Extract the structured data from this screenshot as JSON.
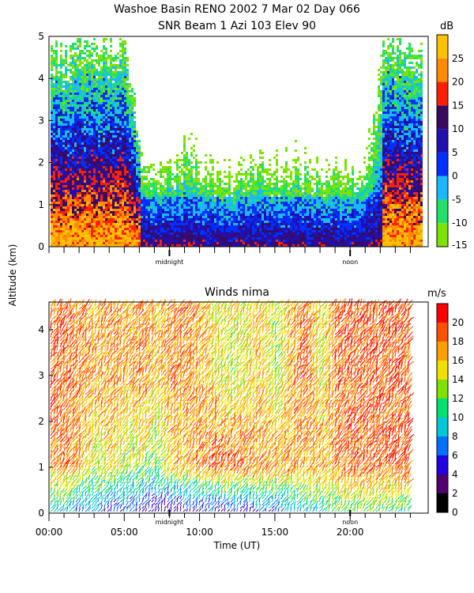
{
  "header": {
    "title_line1": "Washoe Basin RENO 2002   7 Mar 02 Day 066",
    "title_line2": "SNR Beam 1 Azi 103 Elev 90"
  },
  "shared_ylabel": "Altitude (km)",
  "chart_data": [
    {
      "type": "heatmap",
      "title": "SNR Beam 1 Azi 103 Elev 90",
      "ylabel": "Altitude (km)",
      "ylim": [
        0,
        5
      ],
      "yticks": [
        "0",
        "1",
        "2",
        "3",
        "4",
        "5"
      ],
      "markers": [
        {
          "label": "midnight",
          "x_hours": 8.0
        },
        {
          "label": "noon",
          "x_hours": 20.0
        }
      ],
      "colorbar": {
        "unit": "dB",
        "ticks": [
          "-15",
          "-10",
          "-5",
          "0",
          "5",
          "10",
          "15",
          "20",
          "25"
        ],
        "levels": [
          -15,
          -10,
          -5,
          0,
          5,
          10,
          15,
          20,
          25,
          30
        ],
        "colors": [
          "#7ce300",
          "#22e06a",
          "#1ab8ff",
          "#0030ff",
          "#2010b0",
          "#3a0a60",
          "#ff2000",
          "#ff8c00",
          "#ffc000"
        ]
      },
      "description_values": {
        "echo_top_km_by_hour": [
          [
            0,
            4.8
          ],
          [
            1,
            4.6
          ],
          [
            2,
            4.9
          ],
          [
            3,
            4.9
          ],
          [
            4,
            4.9
          ],
          [
            5,
            4.9
          ],
          [
            6,
            2.6
          ],
          [
            7,
            2.1
          ],
          [
            8,
            2.4
          ],
          [
            9,
            2.7
          ],
          [
            10,
            2.4
          ],
          [
            11,
            2.0
          ],
          [
            12,
            1.9
          ],
          [
            13,
            2.1
          ],
          [
            14,
            2.4
          ],
          [
            15,
            2.2
          ],
          [
            16,
            2.3
          ],
          [
            17,
            2.2
          ],
          [
            18,
            2.0
          ],
          [
            19,
            2.1
          ],
          [
            20,
            2.0
          ],
          [
            21,
            2.3
          ],
          [
            22,
            4.9
          ],
          [
            23,
            4.9
          ]
        ]
      }
    },
    {
      "type": "scatter",
      "title": "Winds nima",
      "xlabel": "Time (UT)",
      "ylabel": "Altitude (km)",
      "ylim": [
        0,
        4.6
      ],
      "yticks": [
        "0",
        "1",
        "2",
        "3",
        "4"
      ],
      "xticks": [
        "00:00",
        "05:00",
        "10:00",
        "15:00",
        "20:00"
      ],
      "xlim_hours": [
        0,
        24
      ],
      "markers": [
        {
          "label": "midnight",
          "x_hours": 8.0
        },
        {
          "label": "noon",
          "x_hours": 20.0
        }
      ],
      "colorbar": {
        "unit": "m/s",
        "ticks": [
          "0",
          "2",
          "4",
          "6",
          "8",
          "10",
          "12",
          "14",
          "16",
          "18",
          "20"
        ],
        "levels": [
          0,
          2,
          4,
          6,
          8,
          10,
          12,
          14,
          16,
          18,
          20,
          22
        ],
        "colors": [
          "#000000",
          "#500070",
          "#2000e0",
          "#0070ff",
          "#00c8d8",
          "#00e070",
          "#80e000",
          "#f0e000",
          "#ffa000",
          "#ff5000",
          "#ff0000"
        ]
      },
      "description_values": {
        "wind_speed_ms_by_hour_low_mid_high": [
          [
            0,
            8,
            18,
            19
          ],
          [
            1,
            9,
            18,
            19
          ],
          [
            2,
            6,
            17,
            18
          ],
          [
            3,
            7,
            14,
            17
          ],
          [
            4,
            5,
            16,
            18
          ],
          [
            5,
            6,
            13,
            17
          ],
          [
            6,
            4,
            14,
            18
          ],
          [
            7,
            3,
            12,
            16
          ],
          [
            8,
            3,
            16,
            18
          ],
          [
            9,
            3,
            17,
            18
          ],
          [
            10,
            4,
            18,
            17
          ],
          [
            11,
            3,
            19,
            15
          ],
          [
            12,
            5,
            19,
            14
          ],
          [
            13,
            4,
            19,
            15
          ],
          [
            14,
            6,
            18,
            16
          ],
          [
            15,
            5,
            18,
            13
          ],
          [
            16,
            7,
            18,
            17
          ],
          [
            17,
            9,
            17,
            19
          ],
          [
            18,
            10,
            17,
            14
          ],
          [
            19,
            11,
            18,
            19
          ],
          [
            20,
            12,
            19,
            19
          ],
          [
            21,
            12,
            19,
            19
          ],
          [
            22,
            11,
            19,
            19
          ]
        ]
      }
    }
  ]
}
